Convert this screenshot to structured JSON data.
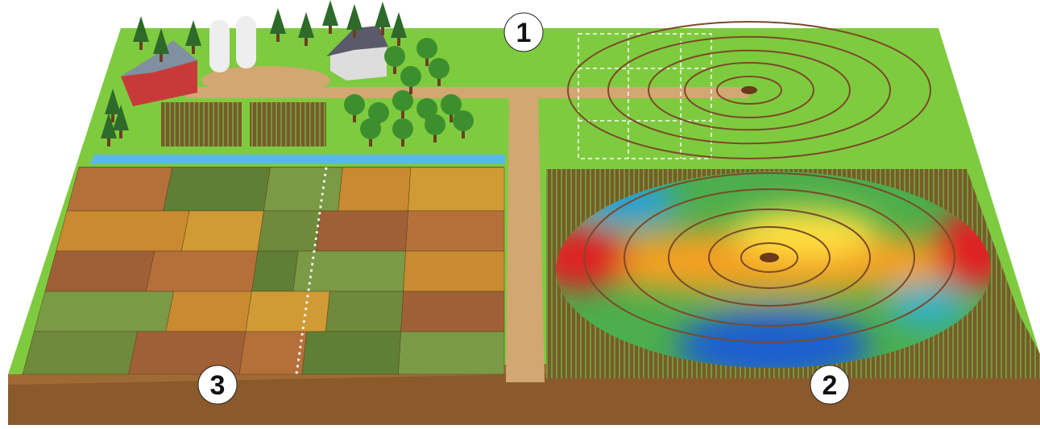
{
  "labels": [
    {
      "text": "1"
    },
    {
      "text": "2"
    },
    {
      "text": "3"
    }
  ]
}
